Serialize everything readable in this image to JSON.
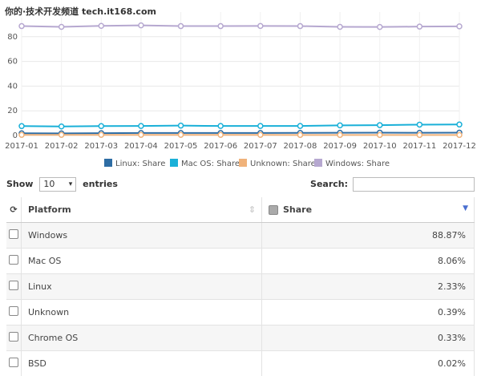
{
  "watermark": "你的·技术开发频道 tech.it168.com",
  "chart_data": {
    "type": "line",
    "categories": [
      "2017-01",
      "2017-02",
      "2017-03",
      "2017-04",
      "2017-05",
      "2017-06",
      "2017-07",
      "2017-08",
      "2017-09",
      "2017-10",
      "2017-11",
      "2017-12"
    ],
    "ylim": [
      0,
      100
    ],
    "yticks": [
      0,
      20,
      40,
      60,
      80
    ],
    "grid": true,
    "legend": "bottom",
    "series": [
      {
        "name": "Linux: Share",
        "color": "#2e6da4",
        "values": [
          1.8,
          1.7,
          1.9,
          2.0,
          2.0,
          2.0,
          2.0,
          2.1,
          2.2,
          2.3,
          2.2,
          2.3
        ]
      },
      {
        "name": "Mac OS: Share",
        "color": "#1ab0d8",
        "values": [
          7.6,
          7.3,
          7.6,
          7.7,
          8.0,
          7.7,
          7.7,
          7.7,
          8.2,
          8.4,
          8.8,
          8.9
        ]
      },
      {
        "name": "Unknown: Share",
        "color": "#f0b27a",
        "values": [
          0.5,
          0.5,
          0.5,
          0.5,
          0.5,
          0.5,
          0.5,
          0.4,
          0.4,
          0.4,
          0.4,
          0.4
        ]
      },
      {
        "name": "Windows: Share",
        "color": "#b6a8d0",
        "values": [
          88.6,
          88.0,
          88.8,
          89.2,
          88.6,
          88.6,
          88.7,
          88.6,
          88.0,
          87.9,
          88.2,
          88.4
        ]
      }
    ]
  },
  "table_controls": {
    "show": "Show",
    "page_length": "10",
    "entries": "entries",
    "search": "Search:"
  },
  "table": {
    "columns": [
      "Platform",
      "Share"
    ],
    "rows": [
      [
        "Windows",
        "88.87%"
      ],
      [
        "Mac OS",
        "8.06%"
      ],
      [
        "Linux",
        "2.33%"
      ],
      [
        "Unknown",
        "0.39%"
      ],
      [
        "Chrome OS",
        "0.33%"
      ],
      [
        "BSD",
        "0.02%"
      ]
    ]
  }
}
